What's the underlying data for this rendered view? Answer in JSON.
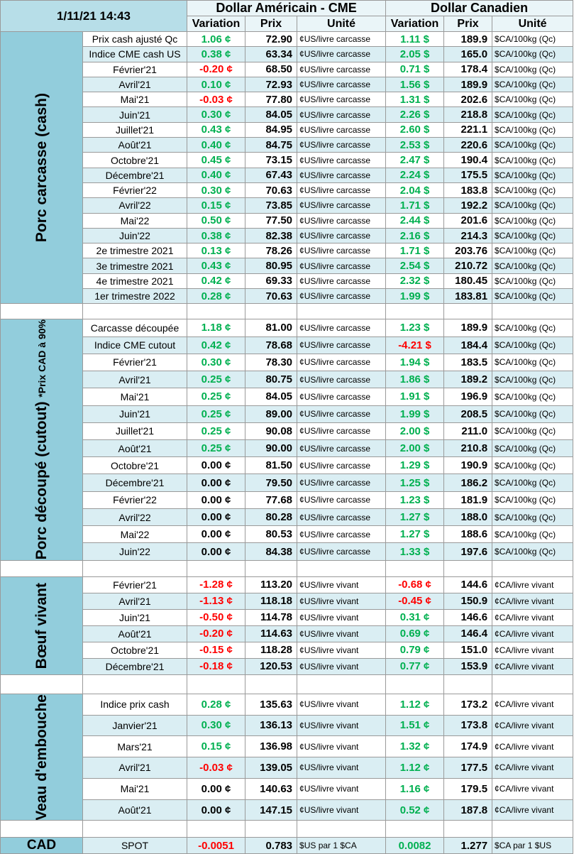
{
  "header": {
    "date": "1/11/21 14:43",
    "us_title": "Dollar Américain - CME",
    "ca_title": "Dollar Canadien",
    "us_columns": [
      "Variation",
      "Prix",
      "Unité"
    ],
    "ca_columns": [
      "Variation",
      "Prix",
      "Unité"
    ]
  },
  "sections": [
    {
      "label": "Porc carcasse (cash)",
      "rows": [
        [
          "Prix cash ajusté Qc",
          "1.06 ¢",
          "72.90",
          "¢US/livre carcasse",
          "1.11 $",
          "189.9",
          "$CA/100kg (Qc)"
        ],
        [
          "Indice CME cash US",
          "0.38 ¢",
          "63.34",
          "¢US/livre carcasse",
          "2.05 $",
          "165.0",
          "$CA/100kg (Qc)"
        ],
        [
          "Février'21",
          "-0.20 ¢",
          "68.50",
          "¢US/livre carcasse",
          "0.71 $",
          "178.4",
          "$CA/100kg (Qc)"
        ],
        [
          "Avril'21",
          "0.10 ¢",
          "72.93",
          "¢US/livre carcasse",
          "1.56 $",
          "189.9",
          "$CA/100kg (Qc)"
        ],
        [
          "Mai'21",
          "-0.03 ¢",
          "77.80",
          "¢US/livre carcasse",
          "1.31 $",
          "202.6",
          "$CA/100kg (Qc)"
        ],
        [
          "Juin'21",
          "0.30 ¢",
          "84.05",
          "¢US/livre carcasse",
          "2.26 $",
          "218.8",
          "$CA/100kg (Qc)"
        ],
        [
          "Juillet'21",
          "0.43 ¢",
          "84.95",
          "¢US/livre carcasse",
          "2.60 $",
          "221.1",
          "$CA/100kg (Qc)"
        ],
        [
          "Août'21",
          "0.40 ¢",
          "84.75",
          "¢US/livre carcasse",
          "2.53 $",
          "220.6",
          "$CA/100kg (Qc)"
        ],
        [
          "Octobre'21",
          "0.45 ¢",
          "73.15",
          "¢US/livre carcasse",
          "2.47 $",
          "190.4",
          "$CA/100kg (Qc)"
        ],
        [
          "Décembre'21",
          "0.40 ¢",
          "67.43",
          "¢US/livre carcasse",
          "2.24 $",
          "175.5",
          "$CA/100kg (Qc)"
        ],
        [
          "Février'22",
          "0.30 ¢",
          "70.63",
          "¢US/livre carcasse",
          "2.04 $",
          "183.8",
          "$CA/100kg (Qc)"
        ],
        [
          "Avril'22",
          "0.15 ¢",
          "73.85",
          "¢US/livre carcasse",
          "1.71 $",
          "192.2",
          "$CA/100kg (Qc)"
        ],
        [
          "Mai'22",
          "0.50 ¢",
          "77.50",
          "¢US/livre carcasse",
          "2.44 $",
          "201.6",
          "$CA/100kg (Qc)"
        ],
        [
          "Juin'22",
          "0.38 ¢",
          "82.38",
          "¢US/livre carcasse",
          "2.16 $",
          "214.3",
          "$CA/100kg (Qc)"
        ],
        [
          "2e trimestre 2021",
          "0.13 ¢",
          "78.26",
          "¢US/livre carcasse",
          "1.71 $",
          "203.76",
          "$CA/100kg (Qc)"
        ],
        [
          "3e trimestre 2021",
          "0.43 ¢",
          "80.95",
          "¢US/livre carcasse",
          "2.54 $",
          "210.72",
          "$CA/100kg (Qc)"
        ],
        [
          "4e trimestre 2021",
          "0.42 ¢",
          "69.33",
          "¢US/livre carcasse",
          "2.32 $",
          "180.45",
          "$CA/100kg (Qc)"
        ],
        [
          "1er trimestre 2022",
          "0.28 ¢",
          "70.63",
          "¢US/livre carcasse",
          "1.99 $",
          "183.81",
          "$CA/100kg (Qc)"
        ]
      ]
    },
    {
      "label": "Porc découpé (cutout)",
      "sublabel": "*Prix CAD à 90%",
      "rows": [
        [
          "Carcasse découpée",
          "1.18 ¢",
          "81.00",
          "¢US/livre carcasse",
          "1.23 $",
          "189.9",
          "$CA/100kg (Qc)"
        ],
        [
          "Indice CME cutout",
          "0.42 ¢",
          "78.68",
          "¢US/livre carcasse",
          "-4.21 $",
          "184.4",
          "$CA/100kg (Qc)"
        ],
        [
          "Février'21",
          "0.30 ¢",
          "78.30",
          "¢US/livre carcasse",
          "1.94 $",
          "183.5",
          "$CA/100kg (Qc)"
        ],
        [
          "Avril'21",
          "0.25 ¢",
          "80.75",
          "¢US/livre carcasse",
          "1.86 $",
          "189.2",
          "$CA/100kg (Qc)"
        ],
        [
          "Mai'21",
          "0.25 ¢",
          "84.05",
          "¢US/livre carcasse",
          "1.91 $",
          "196.9",
          "$CA/100kg (Qc)"
        ],
        [
          "Juin'21",
          "0.25 ¢",
          "89.00",
          "¢US/livre carcasse",
          "1.99 $",
          "208.5",
          "$CA/100kg (Qc)"
        ],
        [
          "Juillet'21",
          "0.25 ¢",
          "90.08",
          "¢US/livre carcasse",
          "2.00 $",
          "211.0",
          "$CA/100kg (Qc)"
        ],
        [
          "Août'21",
          "0.25 ¢",
          "90.00",
          "¢US/livre carcasse",
          "2.00 $",
          "210.8",
          "$CA/100kg (Qc)"
        ],
        [
          "Octobre'21",
          "0.00 ¢",
          "81.50",
          "¢US/livre carcasse",
          "1.29 $",
          "190.9",
          "$CA/100kg (Qc)"
        ],
        [
          "Décembre'21",
          "0.00 ¢",
          "79.50",
          "¢US/livre carcasse",
          "1.25 $",
          "186.2",
          "$CA/100kg (Qc)"
        ],
        [
          "Février'22",
          "0.00 ¢",
          "77.68",
          "¢US/livre carcasse",
          "1.23 $",
          "181.9",
          "$CA/100kg (Qc)"
        ],
        [
          "Avril'22",
          "0.00 ¢",
          "80.28",
          "¢US/livre carcasse",
          "1.27 $",
          "188.0",
          "$CA/100kg (Qc)"
        ],
        [
          "Mai'22",
          "0.00 ¢",
          "80.53",
          "¢US/livre carcasse",
          "1.27 $",
          "188.6",
          "$CA/100kg (Qc)"
        ],
        [
          "Juin'22",
          "0.00 ¢",
          "84.38",
          "¢US/livre carcasse",
          "1.33 $",
          "197.6",
          "$CA/100kg (Qc)"
        ]
      ]
    },
    {
      "label": "Bœuf vivant",
      "rows": [
        [
          "Février'21",
          "-1.28 ¢",
          "113.20",
          "¢US/livre vivant",
          "-0.68 ¢",
          "144.6",
          "¢CA/livre vivant"
        ],
        [
          "Avril'21",
          "-1.13 ¢",
          "118.18",
          "¢US/livre vivant",
          "-0.45 ¢",
          "150.9",
          "¢CA/livre vivant"
        ],
        [
          "Juin'21",
          "-0.50 ¢",
          "114.78",
          "¢US/livre vivant",
          "0.31 ¢",
          "146.6",
          "¢CA/livre vivant"
        ],
        [
          "Août'21",
          "-0.20 ¢",
          "114.63",
          "¢US/livre vivant",
          "0.69 ¢",
          "146.4",
          "¢CA/livre vivant"
        ],
        [
          "Octobre'21",
          "-0.15 ¢",
          "118.28",
          "¢US/livre vivant",
          "0.79 ¢",
          "151.0",
          "¢CA/livre vivant"
        ],
        [
          "Décembre'21",
          "-0.18 ¢",
          "120.53",
          "¢US/livre vivant",
          "0.77 ¢",
          "153.9",
          "¢CA/livre vivant"
        ]
      ]
    },
    {
      "label": "Veau d'embouche",
      "rows": [
        [
          "Indice prix cash",
          "0.28 ¢",
          "135.63",
          "¢US/livre vivant",
          "1.12 ¢",
          "173.2",
          "¢CA/livre vivant"
        ],
        [
          "Janvier'21",
          "0.30 ¢",
          "136.13",
          "¢US/livre vivant",
          "1.51 ¢",
          "173.8",
          "¢CA/livre vivant"
        ],
        [
          "Mars'21",
          "0.15 ¢",
          "136.98",
          "¢US/livre vivant",
          "1.32 ¢",
          "174.9",
          "¢CA/livre vivant"
        ],
        [
          "Avril'21",
          "-0.03 ¢",
          "139.05",
          "¢US/livre vivant",
          "1.12 ¢",
          "177.5",
          "¢CA/livre vivant"
        ],
        [
          "Mai'21",
          "0.00 ¢",
          "140.63",
          "¢US/livre vivant",
          "1.16 ¢",
          "179.5",
          "¢CA/livre vivant"
        ],
        [
          "Août'21",
          "0.00 ¢",
          "147.15",
          "¢US/livre vivant",
          "0.52 ¢",
          "187.8",
          "¢CA/livre vivant"
        ]
      ]
    }
  ],
  "cad": {
    "label": "CAD",
    "row": [
      "SPOT",
      "-0.0051",
      "0.783",
      "$US par 1 $CA",
      "0.0082",
      "1.277",
      "$CA par 1 $US"
    ]
  }
}
